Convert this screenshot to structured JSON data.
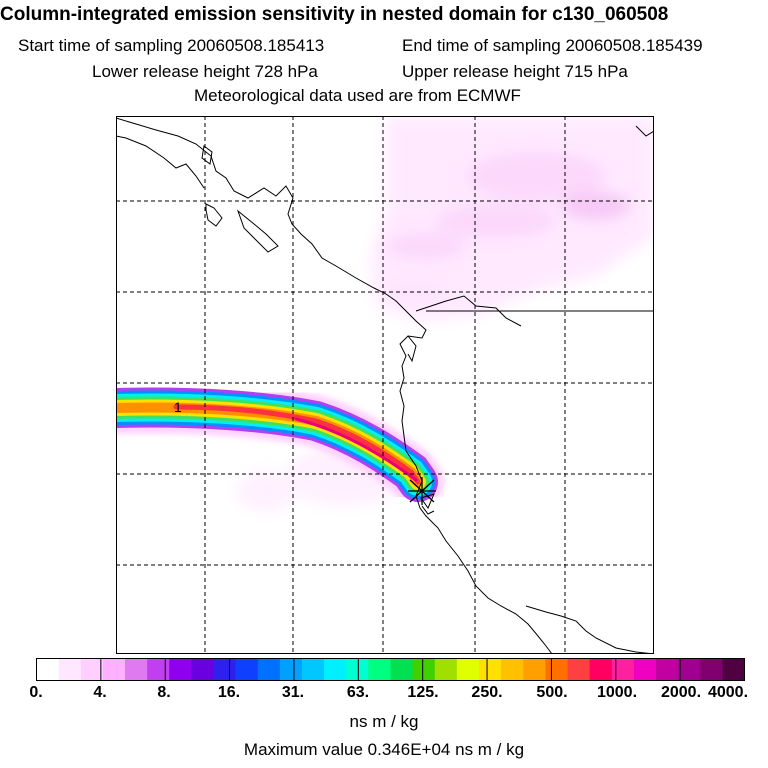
{
  "header": {
    "title": "Column-integrated emission sensitivity in nested domain for c130_060508",
    "start_time": "Start time of sampling 20060508.185413",
    "end_time": "End time of sampling 20060508.185439",
    "lower_height": "Lower release height  728 hPa",
    "upper_height": "Upper release height  715 hPa",
    "met_data": "Meteorological data used are from ECMWF"
  },
  "map": {
    "marker_label": "1",
    "release_marker": "release-point-star"
  },
  "colorbar": {
    "labels": [
      "0.",
      "4.",
      "8.",
      "16.",
      "31.",
      "63.",
      "125.",
      "250.",
      "500.",
      "1000.",
      "2000.",
      "4000."
    ],
    "units": "ns m / kg",
    "colors": [
      "#ffffff",
      "#ffe8ff",
      "#ffd0ff",
      "#ffb0ff",
      "#e07af0",
      "#c040f0",
      "#9000f0",
      "#6a00e0",
      "#3020f0",
      "#1040ff",
      "#0070ff",
      "#00a0ff",
      "#00c8ff",
      "#00f0ff",
      "#00ffd0",
      "#00ff80",
      "#00e050",
      "#40d000",
      "#a0e000",
      "#e0ff00",
      "#ffe000",
      "#ffc000",
      "#ffa000",
      "#ff7000",
      "#ff4040",
      "#ff0060",
      "#ff20a0",
      "#f000c0",
      "#c000a0",
      "#a00090",
      "#800070",
      "#500040"
    ]
  },
  "footer": {
    "maximum": "Maximum value  0.346E+04 ns m / kg"
  }
}
